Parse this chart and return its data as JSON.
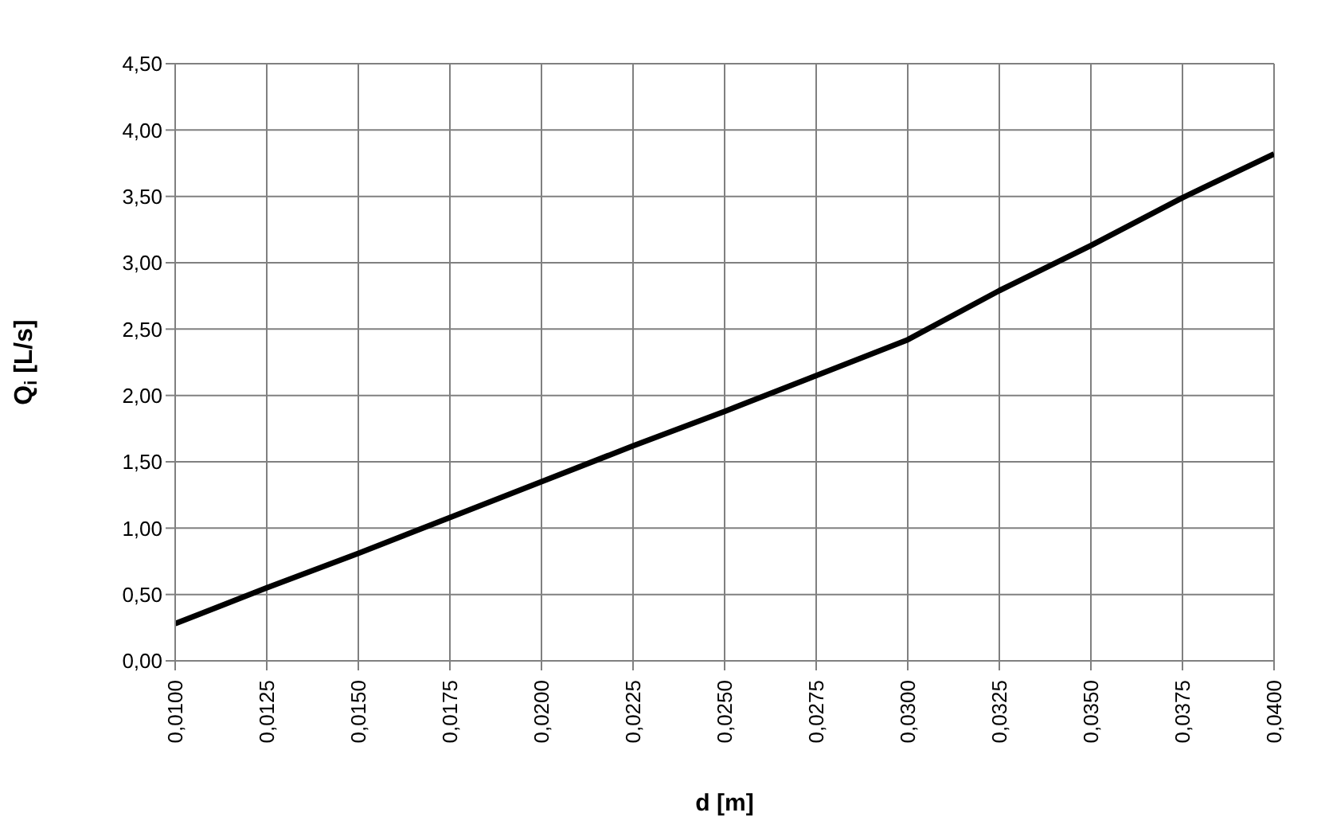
{
  "chart_data": {
    "type": "line",
    "xlabel": "d [m]",
    "ylabel": "Q$_{i}$ [L/s]",
    "x": [
      0.01,
      0.0125,
      0.015,
      0.0175,
      0.02,
      0.0225,
      0.025,
      0.0275,
      0.03,
      0.0325,
      0.035,
      0.0375,
      0.04
    ],
    "series": [
      {
        "color": "#000000",
        "values": [
          0.28,
          0.55,
          0.81,
          1.08,
          1.35,
          1.62,
          1.88,
          2.15,
          2.42,
          2.79,
          3.13,
          3.49,
          3.82
        ]
      }
    ],
    "xlim": [
      0.01,
      0.04
    ],
    "xticks": [
      {
        "value": 0.01,
        "label": "0,0100"
      },
      {
        "value": 0.0125,
        "label": "0,0125"
      },
      {
        "value": 0.015,
        "label": "0,0150"
      },
      {
        "value": 0.0175,
        "label": "0,0175"
      },
      {
        "value": 0.02,
        "label": "0,0200"
      },
      {
        "value": 0.0225,
        "label": "0,0225"
      },
      {
        "value": 0.025,
        "label": "0,0250"
      },
      {
        "value": 0.0275,
        "label": "0,0275"
      },
      {
        "value": 0.03,
        "label": "0,0300"
      },
      {
        "value": 0.0325,
        "label": "0,0325"
      },
      {
        "value": 0.035,
        "label": "0,0350"
      },
      {
        "value": 0.0375,
        "label": "0,0375"
      },
      {
        "value": 0.04,
        "label": "0,0400"
      }
    ],
    "ylim": [
      0,
      4.5
    ],
    "yticks": [
      {
        "value": 0,
        "label": "0,00"
      },
      {
        "value": 0.5,
        "label": "0,50"
      },
      {
        "value": 1,
        "label": "1,00"
      },
      {
        "value": 1.5,
        "label": "1,50"
      },
      {
        "value": 2,
        "label": "2,00"
      },
      {
        "value": 2.5,
        "label": "2,50"
      },
      {
        "value": 3,
        "label": "3,00"
      },
      {
        "value": 3.5,
        "label": "3,50"
      },
      {
        "value": 4,
        "label": "4,00"
      },
      {
        "value": 4.5,
        "label": "4,50"
      }
    ],
    "grid": true,
    "marker": "none",
    "line_style": "solid"
  }
}
